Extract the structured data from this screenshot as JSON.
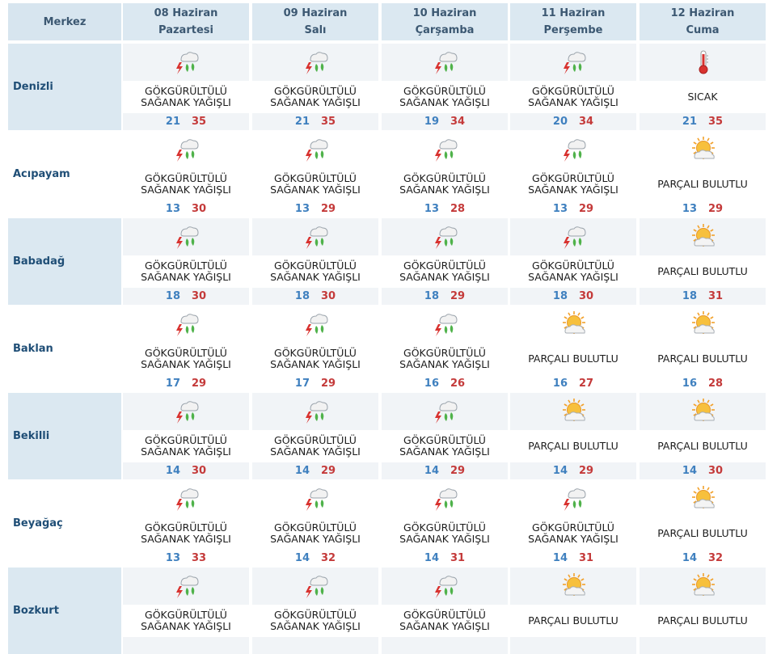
{
  "header": {
    "merkez": "Merkez",
    "days": [
      {
        "date": "08 Haziran",
        "weekday": "Pazartesi"
      },
      {
        "date": "09 Haziran",
        "weekday": "Salı"
      },
      {
        "date": "10 Haziran",
        "weekday": "Çarşamba"
      },
      {
        "date": "11 Haziran",
        "weekday": "Perşembe"
      },
      {
        "date": "12 Haziran",
        "weekday": "Cuma"
      }
    ]
  },
  "conditions": {
    "storm_line1": "GÖKGÜRÜLTÜLÜ",
    "storm_line2": "SAĞANAK YAĞIŞLI",
    "hot": "SICAK",
    "partly": "PARÇALI BULUTLU"
  },
  "colors": {
    "min_temp": "#3f80bf",
    "max_temp": "#c43a3a",
    "row_shade": "#dbe8f1"
  },
  "cities": [
    {
      "name": "Denizli",
      "days": [
        {
          "icon": "thunderstorm-icon",
          "min": "21",
          "max": "35"
        },
        {
          "icon": "thunderstorm-icon",
          "min": "21",
          "max": "35"
        },
        {
          "icon": "thunderstorm-icon",
          "min": "19",
          "max": "34"
        },
        {
          "icon": "thunderstorm-icon",
          "min": "20",
          "max": "34"
        },
        {
          "icon": "thermometer-icon",
          "min": "21",
          "max": "35"
        }
      ]
    },
    {
      "name": "Acıpayam",
      "days": [
        {
          "icon": "thunderstorm-icon",
          "min": "13",
          "max": "30"
        },
        {
          "icon": "thunderstorm-icon",
          "min": "13",
          "max": "29"
        },
        {
          "icon": "thunderstorm-icon",
          "min": "13",
          "max": "28"
        },
        {
          "icon": "thunderstorm-icon",
          "min": "13",
          "max": "29"
        },
        {
          "icon": "partly-cloudy-icon",
          "min": "13",
          "max": "29"
        }
      ]
    },
    {
      "name": "Babadağ",
      "days": [
        {
          "icon": "thunderstorm-icon",
          "min": "18",
          "max": "30"
        },
        {
          "icon": "thunderstorm-icon",
          "min": "18",
          "max": "30"
        },
        {
          "icon": "thunderstorm-icon",
          "min": "18",
          "max": "29"
        },
        {
          "icon": "thunderstorm-icon",
          "min": "18",
          "max": "30"
        },
        {
          "icon": "partly-cloudy-icon",
          "min": "18",
          "max": "31"
        }
      ]
    },
    {
      "name": "Baklan",
      "days": [
        {
          "icon": "thunderstorm-icon",
          "min": "17",
          "max": "29"
        },
        {
          "icon": "thunderstorm-icon",
          "min": "17",
          "max": "29"
        },
        {
          "icon": "thunderstorm-icon",
          "min": "16",
          "max": "26"
        },
        {
          "icon": "partly-cloudy-icon",
          "min": "16",
          "max": "27"
        },
        {
          "icon": "partly-cloudy-icon",
          "min": "16",
          "max": "28"
        }
      ]
    },
    {
      "name": "Bekilli",
      "days": [
        {
          "icon": "thunderstorm-icon",
          "min": "14",
          "max": "30"
        },
        {
          "icon": "thunderstorm-icon",
          "min": "14",
          "max": "29"
        },
        {
          "icon": "thunderstorm-icon",
          "min": "14",
          "max": "29"
        },
        {
          "icon": "partly-cloudy-icon",
          "min": "14",
          "max": "29"
        },
        {
          "icon": "partly-cloudy-icon",
          "min": "14",
          "max": "30"
        }
      ]
    },
    {
      "name": "Beyağaç",
      "days": [
        {
          "icon": "thunderstorm-icon",
          "min": "13",
          "max": "33"
        },
        {
          "icon": "thunderstorm-icon",
          "min": "14",
          "max": "32"
        },
        {
          "icon": "thunderstorm-icon",
          "min": "14",
          "max": "31"
        },
        {
          "icon": "thunderstorm-icon",
          "min": "14",
          "max": "31"
        },
        {
          "icon": "partly-cloudy-icon",
          "min": "14",
          "max": "32"
        }
      ]
    },
    {
      "name": "Bozkurt",
      "days": [
        {
          "icon": "thunderstorm-icon",
          "min": "",
          "max": ""
        },
        {
          "icon": "thunderstorm-icon",
          "min": "",
          "max": ""
        },
        {
          "icon": "thunderstorm-icon",
          "min": "",
          "max": ""
        },
        {
          "icon": "partly-cloudy-icon",
          "min": "",
          "max": ""
        },
        {
          "icon": "partly-cloudy-icon",
          "min": "",
          "max": ""
        }
      ]
    }
  ]
}
